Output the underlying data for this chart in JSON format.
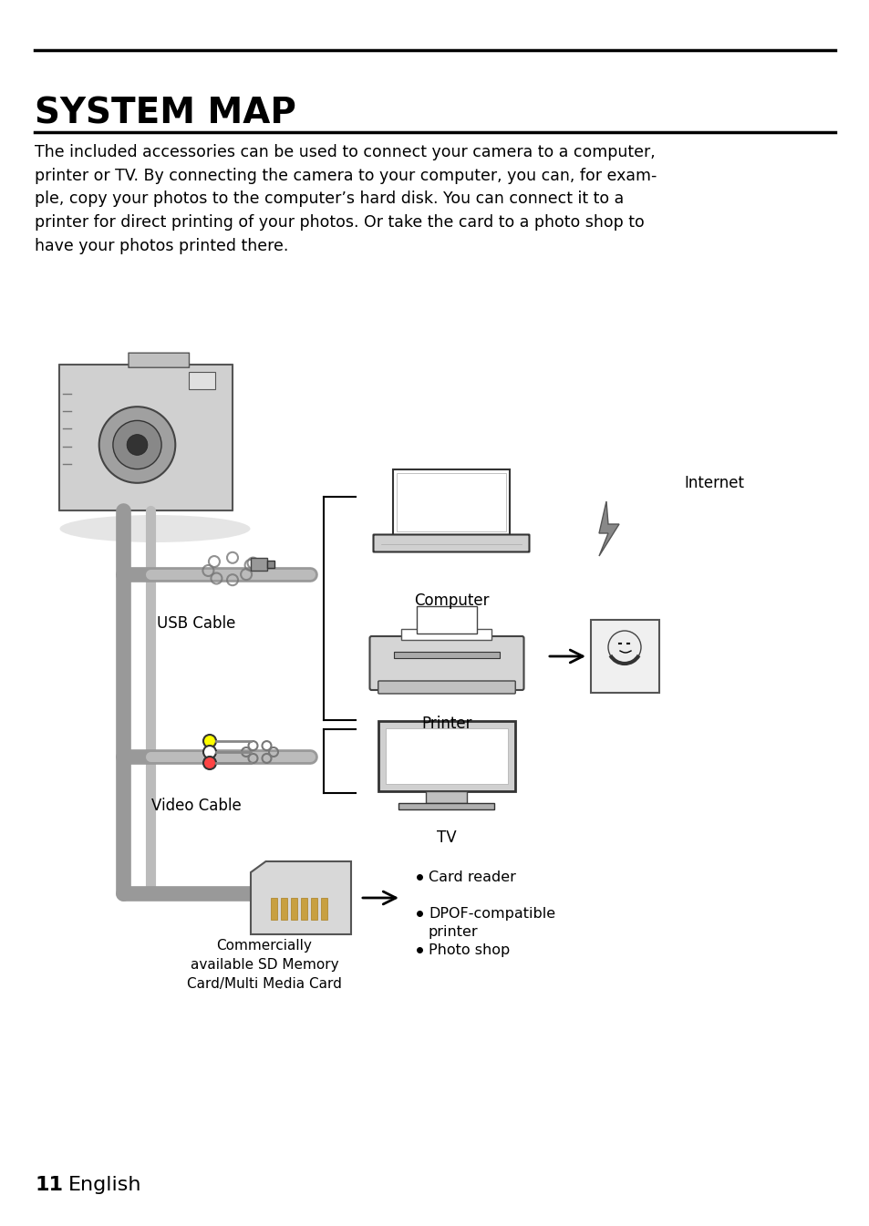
{
  "title": "SYSTEM MAP",
  "body_text": "The included accessories can be used to connect your camera to a computer,\nprinter or TV. By connecting the camera to your computer, you can, for exam-\nple, copy your photos to the computer’s hard disk. You can connect it to a\nprinter for direct printing of your photos. Or take the card to a photo shop to\nhave your photos printed there.",
  "footer_number": "11",
  "footer_text": "English",
  "bg_color": "#ffffff",
  "text_color": "#000000",
  "title_fontsize": 28,
  "body_fontsize": 12.5,
  "footer_fontsize": 16
}
